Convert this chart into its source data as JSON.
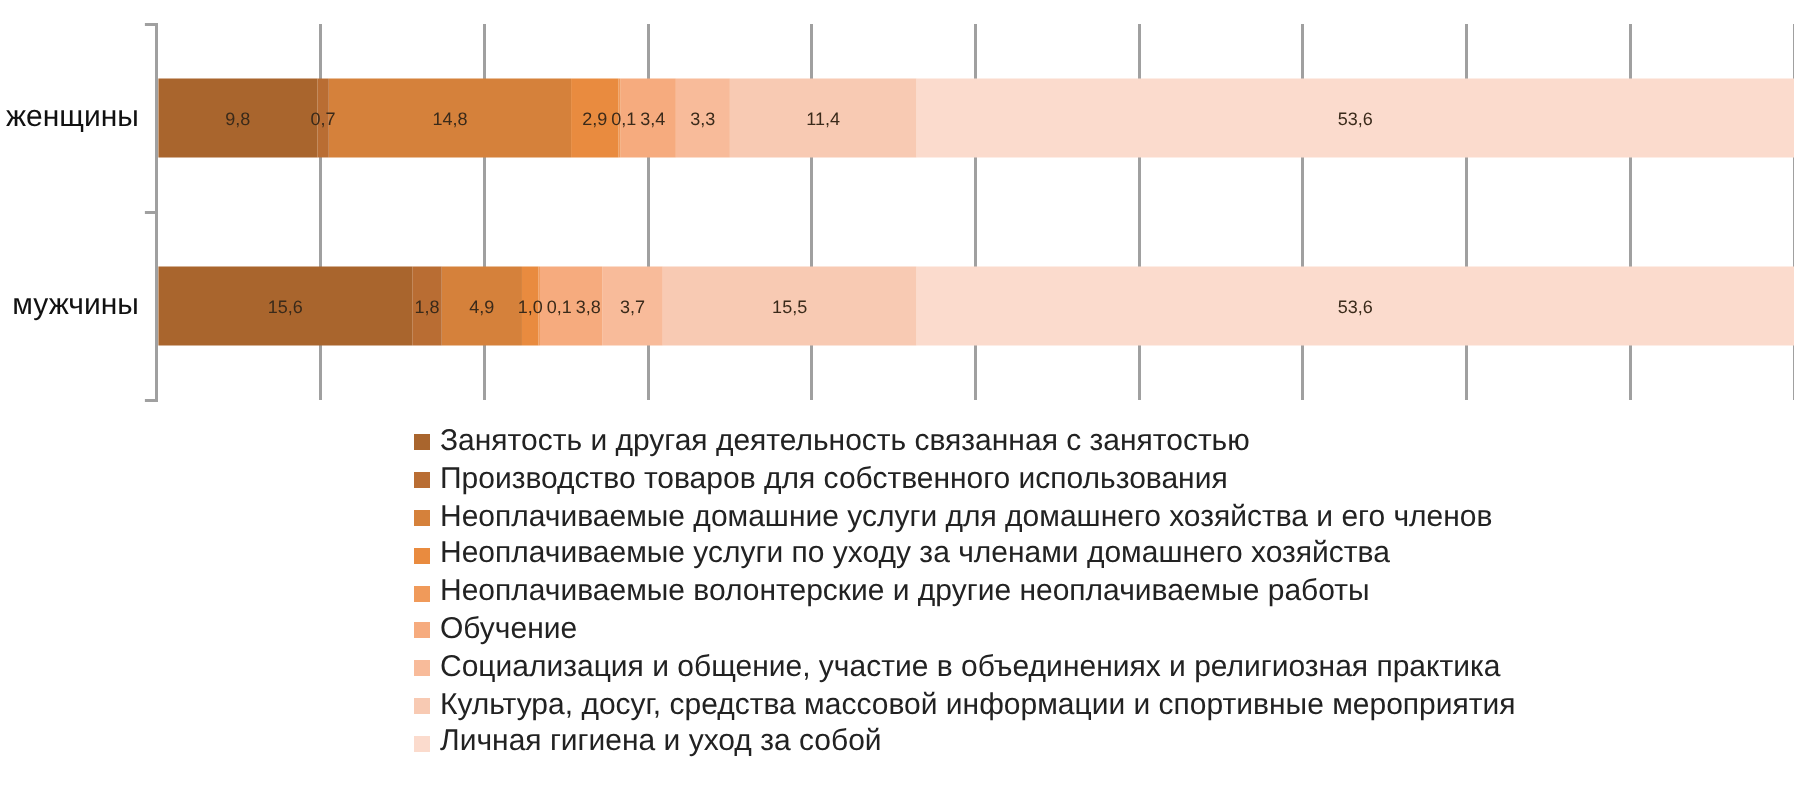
{
  "chart_data": {
    "type": "bar",
    "orientation": "horizontal",
    "stacked": true,
    "categories": [
      "женщины",
      "мужчины"
    ],
    "series": [
      {
        "name": "Занятость и другая деятельность связанная с занятостью",
        "color": "#a9652d",
        "values": [
          9.8,
          15.6
        ],
        "value_labels": [
          "9,8",
          "15,6"
        ]
      },
      {
        "name": "Производство товаров для собственного использования",
        "color": "#b96d33",
        "values": [
          0.7,
          1.8
        ],
        "value_labels": [
          "0,7",
          "1,8"
        ]
      },
      {
        "name": "Неоплачиваемые домашние услуги для домашнего хозяйства и его членов",
        "color": "#d5813b",
        "values": [
          14.8,
          4.9
        ],
        "value_labels": [
          "14,8",
          "4,9"
        ]
      },
      {
        "name": "Неоплачиваемые услуги по уходу за членами домашнего хозяйства",
        "color": "#e98b3f",
        "values": [
          2.9,
          1.0
        ],
        "value_labels": [
          "2,9",
          "1,0"
        ]
      },
      {
        "name": "Неоплачиваемые волонтерские и другие неоплачиваемые работы",
        "color": "#f09a5a",
        "values": [
          0.1,
          0.1
        ],
        "value_labels": [
          "0,1",
          "0,1"
        ]
      },
      {
        "name": "Обучение",
        "color": "#f6ab7e",
        "values": [
          3.4,
          3.8
        ],
        "value_labels": [
          "3,4",
          "3,8"
        ]
      },
      {
        "name": "Социализация и общение, участие в объединениях и религиозная практика",
        "color": "#f8bb9a",
        "values": [
          3.3,
          3.7
        ],
        "value_labels": [
          "3,3",
          "3,7"
        ]
      },
      {
        "name": "Культура, досуг, средства массовой информации и спортивные мероприятия",
        "color": "#f8cab3",
        "values": [
          11.4,
          15.5
        ],
        "value_labels": [
          "11,4",
          "15,5"
        ]
      },
      {
        "name": "Личная гигиена и уход за собой",
        "color": "#fbdbcd",
        "values": [
          53.6,
          53.6
        ],
        "value_labels": [
          "53,6",
          "53,6"
        ]
      }
    ],
    "xlim": [
      0,
      100
    ],
    "xticks": [
      {
        "value": 0,
        "label": null
      },
      {
        "value": 10,
        "label": null
      },
      {
        "value": 20,
        "label": null
      },
      {
        "value": 30,
        "label": null
      },
      {
        "value": 40,
        "label": null
      },
      {
        "value": 50,
        "label": null
      },
      {
        "value": 60,
        "label": null
      },
      {
        "value": 70,
        "label": null
      },
      {
        "value": 80,
        "label": null
      },
      {
        "value": 90,
        "label": null
      },
      {
        "value": 100,
        "label": null
      }
    ],
    "tick_labels": "y",
    "grid": "x",
    "legend": "bottom"
  }
}
